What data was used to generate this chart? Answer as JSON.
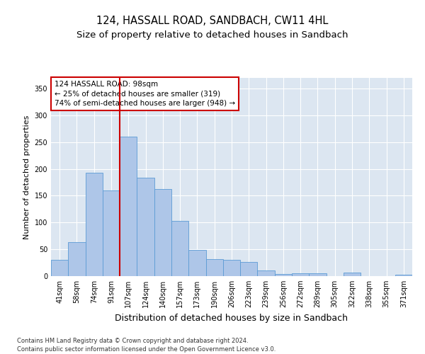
{
  "title": "124, HASSALL ROAD, SANDBACH, CW11 4HL",
  "subtitle": "Size of property relative to detached houses in Sandbach",
  "xlabel": "Distribution of detached houses by size in Sandbach",
  "ylabel": "Number of detached properties",
  "categories": [
    "41sqm",
    "58sqm",
    "74sqm",
    "91sqm",
    "107sqm",
    "124sqm",
    "140sqm",
    "157sqm",
    "173sqm",
    "190sqm",
    "206sqm",
    "223sqm",
    "239sqm",
    "256sqm",
    "272sqm",
    "289sqm",
    "305sqm",
    "322sqm",
    "338sqm",
    "355sqm",
    "371sqm"
  ],
  "values": [
    30,
    64,
    193,
    160,
    260,
    184,
    163,
    103,
    49,
    32,
    30,
    27,
    10,
    4,
    5,
    5,
    0,
    6,
    0,
    0,
    2
  ],
  "bar_color": "#aec6e8",
  "bar_edge_color": "#5b9bd5",
  "vline_x": 3.5,
  "vline_color": "#cc0000",
  "annotation_line1": "124 HASSALL ROAD: 98sqm",
  "annotation_line2": "← 25% of detached houses are smaller (319)",
  "annotation_line3": "74% of semi-detached houses are larger (948) →",
  "annotation_box_color": "#ffffff",
  "annotation_box_edge_color": "#cc0000",
  "ylim": [
    0,
    370
  ],
  "yticks": [
    0,
    50,
    100,
    150,
    200,
    250,
    300,
    350
  ],
  "plot_bg_color": "#dce6f1",
  "footer_line1": "Contains HM Land Registry data © Crown copyright and database right 2024.",
  "footer_line2": "Contains public sector information licensed under the Open Government Licence v3.0.",
  "title_fontsize": 10.5,
  "subtitle_fontsize": 9.5,
  "xlabel_fontsize": 9,
  "ylabel_fontsize": 8,
  "tick_fontsize": 7,
  "annotation_fontsize": 7.5,
  "footer_fontsize": 6
}
